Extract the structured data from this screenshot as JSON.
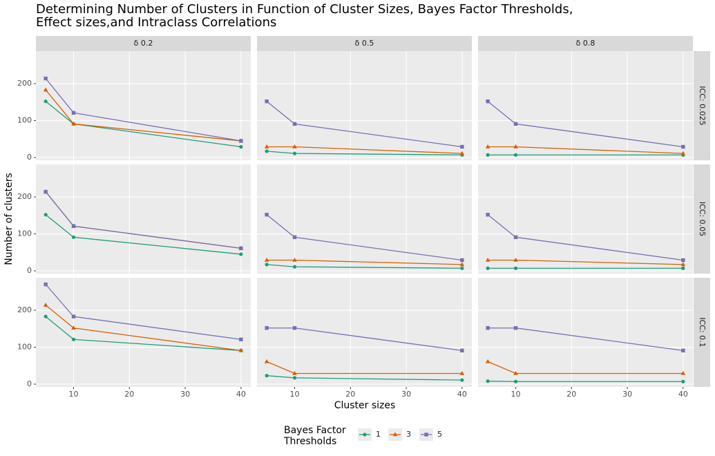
{
  "chart_data": {
    "type": "line",
    "title": [
      "Determining Number of Clusters in Function of Cluster Sizes, Bayes Factor Thresholds,",
      "Effect sizes,and Intraclass Correlations"
    ],
    "x_label": "Cluster sizes",
    "y_label": "Number of clusters",
    "legend_title": [
      "Bayes Factor",
      "Thresholds"
    ],
    "columns": [
      "δ 0.2",
      "δ 0.5",
      "δ 0.8"
    ],
    "rows": [
      "ICC: 0.025",
      "ICC: 0.05",
      "ICC: 0.1"
    ],
    "x": [
      5,
      10,
      40
    ],
    "xlim": [
      3.25,
      41.75
    ],
    "xticks": [
      10,
      20,
      30,
      40
    ],
    "ylim": [
      -7.5,
      288
    ],
    "yticks": [
      0,
      100,
      200
    ],
    "grid": true,
    "series": [
      {
        "name": "1",
        "color": "#1b9e77",
        "marker": "circle"
      },
      {
        "name": "3",
        "color": "#d95f02",
        "marker": "triangle"
      },
      {
        "name": "5",
        "color": "#7570b3",
        "marker": "square"
      }
    ],
    "panels": [
      [
        [
          [
            152,
            91,
            29
          ],
          [
            183,
            91,
            45
          ],
          [
            214,
            121,
            45
          ]
        ],
        [
          [
            17,
            11,
            7
          ],
          [
            29,
            29,
            11
          ],
          [
            152,
            91,
            29
          ]
        ],
        [
          [
            7,
            7,
            7
          ],
          [
            29,
            29,
            11
          ],
          [
            152,
            91,
            29
          ]
        ]
      ],
      [
        [
          [
            152,
            91,
            45
          ],
          [
            214,
            121,
            61
          ],
          [
            214,
            121,
            61
          ]
        ],
        [
          [
            17,
            11,
            7
          ],
          [
            29,
            29,
            17
          ],
          [
            152,
            91,
            29
          ]
        ],
        [
          [
            7,
            7,
            7
          ],
          [
            29,
            29,
            17
          ],
          [
            152,
            91,
            29
          ]
        ]
      ],
      [
        [
          [
            183,
            121,
            91
          ],
          [
            214,
            152,
            91
          ],
          [
            270,
            183,
            121
          ]
        ],
        [
          [
            23,
            17,
            11
          ],
          [
            61,
            29,
            29
          ],
          [
            152,
            152,
            91
          ]
        ],
        [
          [
            8,
            7,
            7
          ],
          [
            61,
            29,
            29
          ],
          [
            152,
            152,
            91
          ]
        ]
      ]
    ]
  }
}
